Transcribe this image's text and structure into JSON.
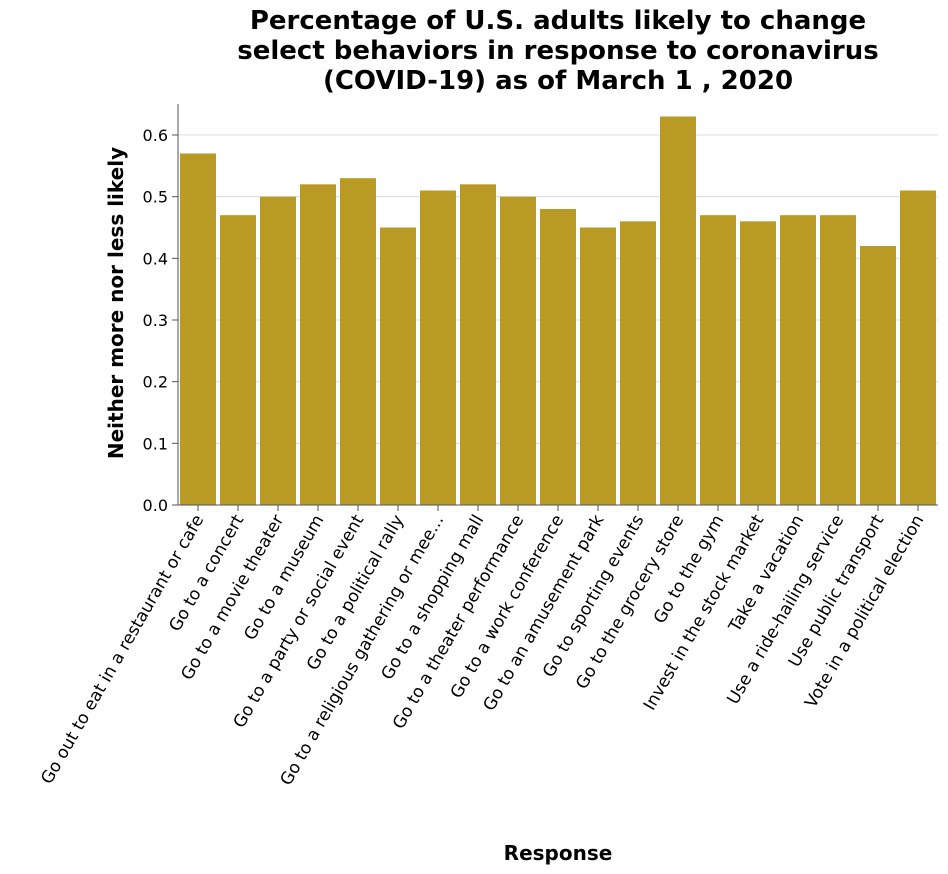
{
  "chart_data": {
    "type": "bar",
    "title_lines": [
      "Percentage of U.S. adults likely to change",
      "select behaviors in response to coronavirus",
      "(COVID-19) as of March 1 , 2020"
    ],
    "xlabel": "Response",
    "ylabel": "Neither more nor less likely",
    "ylim": [
      0,
      0.65
    ],
    "yticks": [
      "0.0",
      "0.1",
      "0.2",
      "0.3",
      "0.4",
      "0.5",
      "0.6"
    ],
    "categories": [
      "Go out to eat in a restaurant or cafe",
      "Go to a concert",
      "Go to a movie theater",
      "Go to a museum",
      "Go to a party or social event",
      "Go to a political rally",
      "Go to a religious gathering or mee...",
      "Go to a shopping mall",
      "Go to a theater performance",
      "Go to a work conference",
      "Go to an amusement park",
      "Go to sporting events",
      "Go to the grocery store",
      "Go to the gym",
      "Invest in the stock market",
      "Take a vacation",
      "Use a ride-hailing service",
      "Use public transport",
      "Vote in a political election"
    ],
    "values": [
      0.57,
      0.47,
      0.5,
      0.52,
      0.53,
      0.45,
      0.51,
      0.52,
      0.5,
      0.48,
      0.45,
      0.46,
      0.63,
      0.47,
      0.46,
      0.47,
      0.47,
      0.42,
      0.51
    ],
    "bar_color": "#b89a24",
    "grid": true,
    "legend": "none"
  }
}
